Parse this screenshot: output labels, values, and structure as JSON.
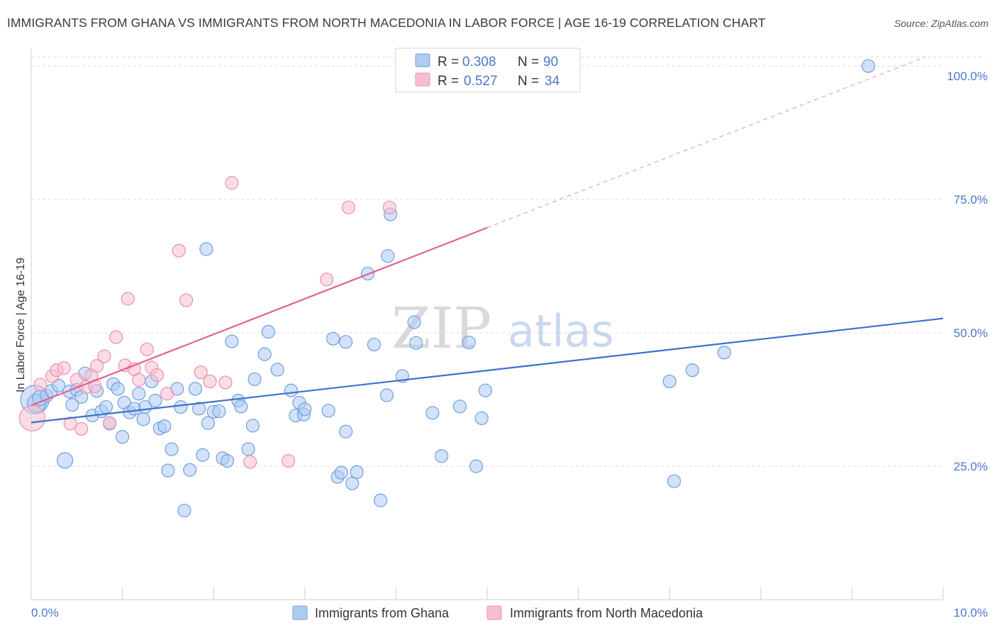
{
  "title": "IMMIGRANTS FROM GHANA VS IMMIGRANTS FROM NORTH MACEDONIA IN LABOR FORCE | AGE 16-19 CORRELATION CHART",
  "source": "Source: ZipAtlas.com",
  "watermark": {
    "zip": "ZIP",
    "atlas": "atlas"
  },
  "legend": {
    "rows": [
      {
        "r_label": "R =",
        "r_value": "0.308",
        "n_label": "N =",
        "n_value": "90"
      },
      {
        "r_label": "R =",
        "r_value": "0.527",
        "n_label": "N =",
        "n_value": "34"
      }
    ]
  },
  "bottom_legend": [
    "Immigrants from Ghana",
    "Immigrants from North Macedonia"
  ],
  "colors": {
    "ghana_fill": "#aecbf2",
    "ghana_stroke": "#6f9fe0",
    "ghana_line": "#3a72cc",
    "macedonia_fill": "#f6bfd0",
    "macedonia_stroke": "#ee8fae",
    "macedonia_line": "#e2608f",
    "axis_text": "#4a78c8",
    "grid": "#dcdcdc"
  },
  "chart_data": {
    "type": "scatter",
    "title": "IMMIGRANTS FROM GHANA VS IMMIGRANTS FROM NORTH MACEDONIA IN LABOR FORCE | AGE 16-19 CORRELATION CHART",
    "xlabel": "",
    "ylabel": "In Labor Force | Age 16-19",
    "xlim": [
      0,
      10
    ],
    "ylim": [
      0,
      102
    ],
    "x_tick_labels": [
      "0.0%",
      "10.0%"
    ],
    "y_ticks": [
      25,
      50,
      75,
      100
    ],
    "y_tick_labels": [
      "25.0%",
      "50.0%",
      "75.0%",
      "100.0%"
    ],
    "grid": true,
    "series": [
      {
        "name": "Immigrants from Ghana",
        "stats": {
          "R": 0.308,
          "N": 90
        },
        "trend": {
          "x0": 0,
          "y0": 33.2,
          "x1": 10,
          "y1": 52.7,
          "dashed_from": null
        },
        "points": [
          [
            0.04,
            37.5,
            20
          ],
          [
            0.06,
            36.8,
            13
          ],
          [
            0.1,
            37.8,
            11
          ],
          [
            0.17,
            38.2,
            9
          ],
          [
            0.22,
            39.1,
            9
          ],
          [
            0.3,
            40.1,
            9
          ],
          [
            0.37,
            26.1,
            11
          ],
          [
            0.42,
            39.0,
            9
          ],
          [
            0.45,
            36.5,
            9
          ],
          [
            0.5,
            39.3,
            9
          ],
          [
            0.55,
            38.0,
            9
          ],
          [
            0.59,
            42.4,
            9
          ],
          [
            0.67,
            34.5,
            9
          ],
          [
            0.72,
            39.1,
            9
          ],
          [
            0.77,
            35.3,
            9
          ],
          [
            0.82,
            36.1,
            9
          ],
          [
            0.86,
            33.0,
            9
          ],
          [
            0.9,
            40.4,
            9
          ],
          [
            0.95,
            39.5,
            9
          ],
          [
            1.0,
            30.5,
            9
          ],
          [
            1.02,
            36.9,
            9
          ],
          [
            1.08,
            35.1,
            9
          ],
          [
            1.13,
            35.8,
            9
          ],
          [
            1.18,
            38.6,
            9
          ],
          [
            1.23,
            33.8,
            9
          ],
          [
            1.25,
            36.1,
            9
          ],
          [
            1.32,
            40.9,
            9
          ],
          [
            1.36,
            37.3,
            9
          ],
          [
            1.41,
            32.1,
            9
          ],
          [
            1.46,
            32.5,
            9
          ],
          [
            1.5,
            24.2,
            9
          ],
          [
            1.54,
            28.2,
            9
          ],
          [
            1.6,
            39.5,
            9
          ],
          [
            1.64,
            36.1,
            9
          ],
          [
            1.68,
            16.7,
            9
          ],
          [
            1.74,
            24.3,
            9
          ],
          [
            1.8,
            39.5,
            9
          ],
          [
            1.84,
            35.8,
            9
          ],
          [
            1.88,
            27.1,
            9
          ],
          [
            1.92,
            65.7,
            9
          ],
          [
            1.94,
            33.1,
            9
          ],
          [
            2.0,
            35.2,
            9
          ],
          [
            2.06,
            35.3,
            9
          ],
          [
            2.1,
            26.5,
            9
          ],
          [
            2.15,
            26.0,
            9
          ],
          [
            2.2,
            48.4,
            9
          ],
          [
            2.27,
            37.3,
            9
          ],
          [
            2.3,
            36.2,
            9
          ],
          [
            2.38,
            28.2,
            9
          ],
          [
            2.43,
            32.6,
            9
          ],
          [
            2.45,
            41.3,
            9
          ],
          [
            2.56,
            46.0,
            9
          ],
          [
            2.6,
            50.2,
            9
          ],
          [
            2.7,
            43.1,
            9
          ],
          [
            2.85,
            39.2,
            9
          ],
          [
            2.9,
            34.5,
            9
          ],
          [
            2.94,
            36.9,
            9
          ],
          [
            2.99,
            34.7,
            9
          ],
          [
            3.0,
            35.7,
            9
          ],
          [
            3.26,
            35.4,
            9
          ],
          [
            3.31,
            48.9,
            9
          ],
          [
            3.36,
            23.0,
            9
          ],
          [
            3.4,
            23.8,
            9
          ],
          [
            3.45,
            31.5,
            9
          ],
          [
            3.45,
            48.3,
            9
          ],
          [
            3.52,
            21.8,
            9
          ],
          [
            3.57,
            23.9,
            9
          ],
          [
            3.69,
            61.1,
            9
          ],
          [
            3.76,
            47.8,
            9
          ],
          [
            3.83,
            18.6,
            9
          ],
          [
            3.9,
            38.3,
            9
          ],
          [
            3.91,
            64.4,
            9
          ],
          [
            3.94,
            72.2,
            9
          ],
          [
            4.07,
            41.9,
            9
          ],
          [
            4.2,
            52.0,
            9
          ],
          [
            4.22,
            48.1,
            9
          ],
          [
            4.4,
            35.0,
            9
          ],
          [
            4.5,
            26.9,
            9
          ],
          [
            4.7,
            36.2,
            9
          ],
          [
            4.8,
            48.2,
            9
          ],
          [
            4.88,
            25.0,
            9
          ],
          [
            4.94,
            34.0,
            9
          ],
          [
            4.98,
            39.2,
            9
          ],
          [
            7.0,
            40.9,
            9
          ],
          [
            7.05,
            22.2,
            9
          ],
          [
            7.25,
            43.0,
            9
          ],
          [
            7.6,
            46.3,
            9
          ],
          [
            9.18,
            100.0,
            9
          ]
        ]
      },
      {
        "name": "Immigrants from North Macedonia",
        "stats": {
          "R": 0.527,
          "N": 34
        },
        "trend": {
          "x0": 0,
          "y0": 36.4,
          "x1": 10,
          "y1": 103.0,
          "dashed_from": 5.0
        },
        "points": [
          [
            0.01,
            34.0,
            18
          ],
          [
            0.1,
            40.3,
            9
          ],
          [
            0.23,
            41.9,
            9
          ],
          [
            0.28,
            43.0,
            9
          ],
          [
            0.36,
            43.4,
            9
          ],
          [
            0.43,
            33.0,
            9
          ],
          [
            0.5,
            41.2,
            9
          ],
          [
            0.55,
            32.0,
            9
          ],
          [
            0.6,
            39.8,
            9
          ],
          [
            0.66,
            42.0,
            9
          ],
          [
            0.72,
            43.8,
            9
          ],
          [
            0.8,
            45.6,
            9
          ],
          [
            0.86,
            33.1,
            9
          ],
          [
            0.93,
            49.2,
            9
          ],
          [
            1.03,
            43.9,
            9
          ],
          [
            1.06,
            56.4,
            9
          ],
          [
            1.13,
            43.2,
            9
          ],
          [
            1.18,
            41.2,
            9
          ],
          [
            1.27,
            46.9,
            9
          ],
          [
            1.32,
            43.5,
            9
          ],
          [
            1.38,
            42.1,
            9
          ],
          [
            1.49,
            38.6,
            9
          ],
          [
            1.62,
            65.4,
            9
          ],
          [
            1.7,
            56.1,
            9
          ],
          [
            1.86,
            42.6,
            9
          ],
          [
            1.96,
            40.9,
            9
          ],
          [
            2.13,
            40.7,
            9
          ],
          [
            2.2,
            78.1,
            9
          ],
          [
            2.4,
            25.8,
            9
          ],
          [
            2.82,
            26.0,
            9
          ],
          [
            3.24,
            60.0,
            9
          ],
          [
            3.48,
            73.5,
            9
          ],
          [
            3.93,
            73.5,
            9
          ],
          [
            0.7,
            40.0,
            9
          ]
        ]
      }
    ]
  }
}
